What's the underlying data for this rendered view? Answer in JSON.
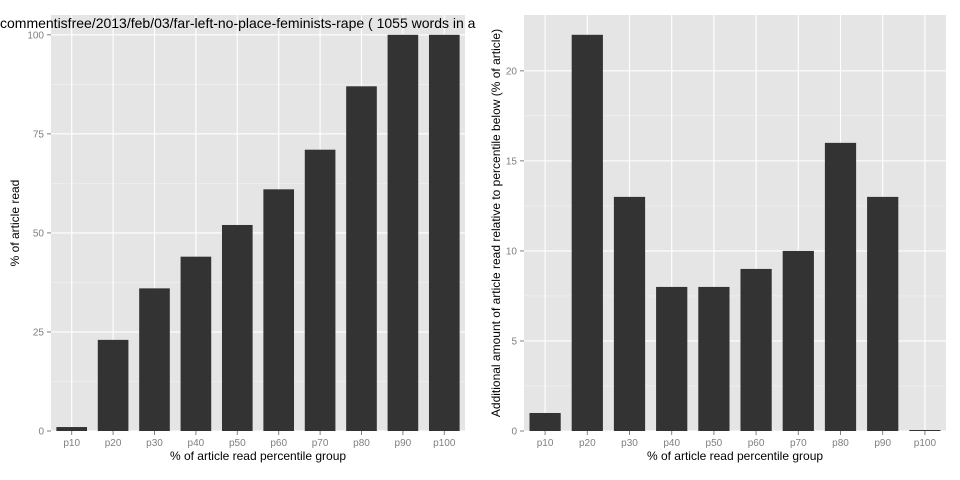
{
  "chart_data": [
    {
      "type": "bar",
      "title": "commentisfree/2013/feb/03/far-left-no-place-feminists-rape ( 1055 words in a",
      "xlabel": "% of article read percentile group",
      "ylabel": "% of article read",
      "categories": [
        "p10",
        "p20",
        "p30",
        "p40",
        "p50",
        "p60",
        "p70",
        "p80",
        "p90",
        "p100"
      ],
      "values": [
        1,
        23,
        36,
        44,
        52,
        61,
        71,
        87,
        100,
        100
      ],
      "ylim": [
        0,
        105
      ],
      "yticks": [
        0,
        25,
        50,
        75,
        100
      ],
      "grid": true,
      "bar_color": "#333333",
      "panel_color": "#e5e5e5"
    },
    {
      "type": "bar",
      "title": "",
      "xlabel": "% of article read percentile group",
      "ylabel": "Additional amount of article read relative to percentile below (% of article)",
      "categories": [
        "p10",
        "p20",
        "p30",
        "p40",
        "p50",
        "p60",
        "p70",
        "p80",
        "p90",
        "p100"
      ],
      "values": [
        1,
        22,
        13,
        8,
        8,
        9,
        10,
        16,
        13,
        0
      ],
      "ylim": [
        0,
        23.1
      ],
      "yticks": [
        0,
        5,
        10,
        15,
        20
      ],
      "grid": true,
      "bar_color": "#333333",
      "panel_color": "#e5e5e5"
    }
  ]
}
